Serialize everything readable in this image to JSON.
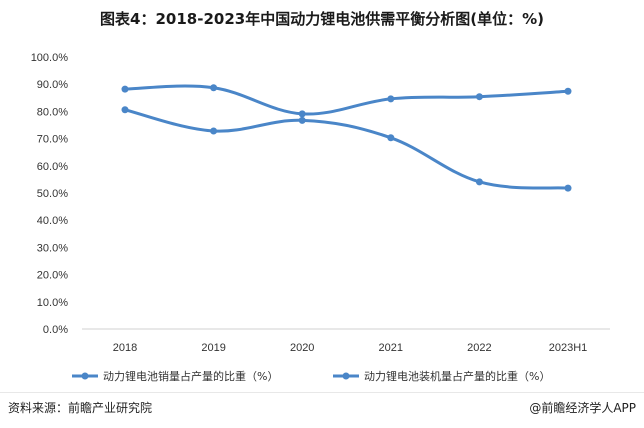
{
  "title": "图表4：2018-2023年中国动力锂电池供需平衡分析图(单位：%)",
  "chart_data": {
    "type": "line",
    "categories": [
      "2018",
      "2019",
      "2020",
      "2021",
      "2022",
      "2023H1"
    ],
    "yticks": [
      "0.0%",
      "10.0%",
      "20.0%",
      "30.0%",
      "40.0%",
      "50.0%",
      "60.0%",
      "70.0%",
      "80.0%",
      "90.0%",
      "100.0%"
    ],
    "ylim": [
      0,
      100
    ],
    "grid": false,
    "legend": "bottom",
    "series": [
      {
        "name": "动力锂电池销量占产量的比重（%）",
        "color": "#4a86c8",
        "values": [
          88.2,
          88.7,
          79.1,
          84.6,
          85.4,
          87.4
        ]
      },
      {
        "name": "动力锂电池装机量占产量的比重（%）",
        "color": "#4a86c8",
        "values": [
          80.6,
          72.8,
          76.7,
          70.3,
          54.1,
          51.8
        ]
      }
    ]
  },
  "footer": {
    "source": "资料来源：前瞻产业研究院",
    "brand": "@前瞻经济学人APP"
  }
}
